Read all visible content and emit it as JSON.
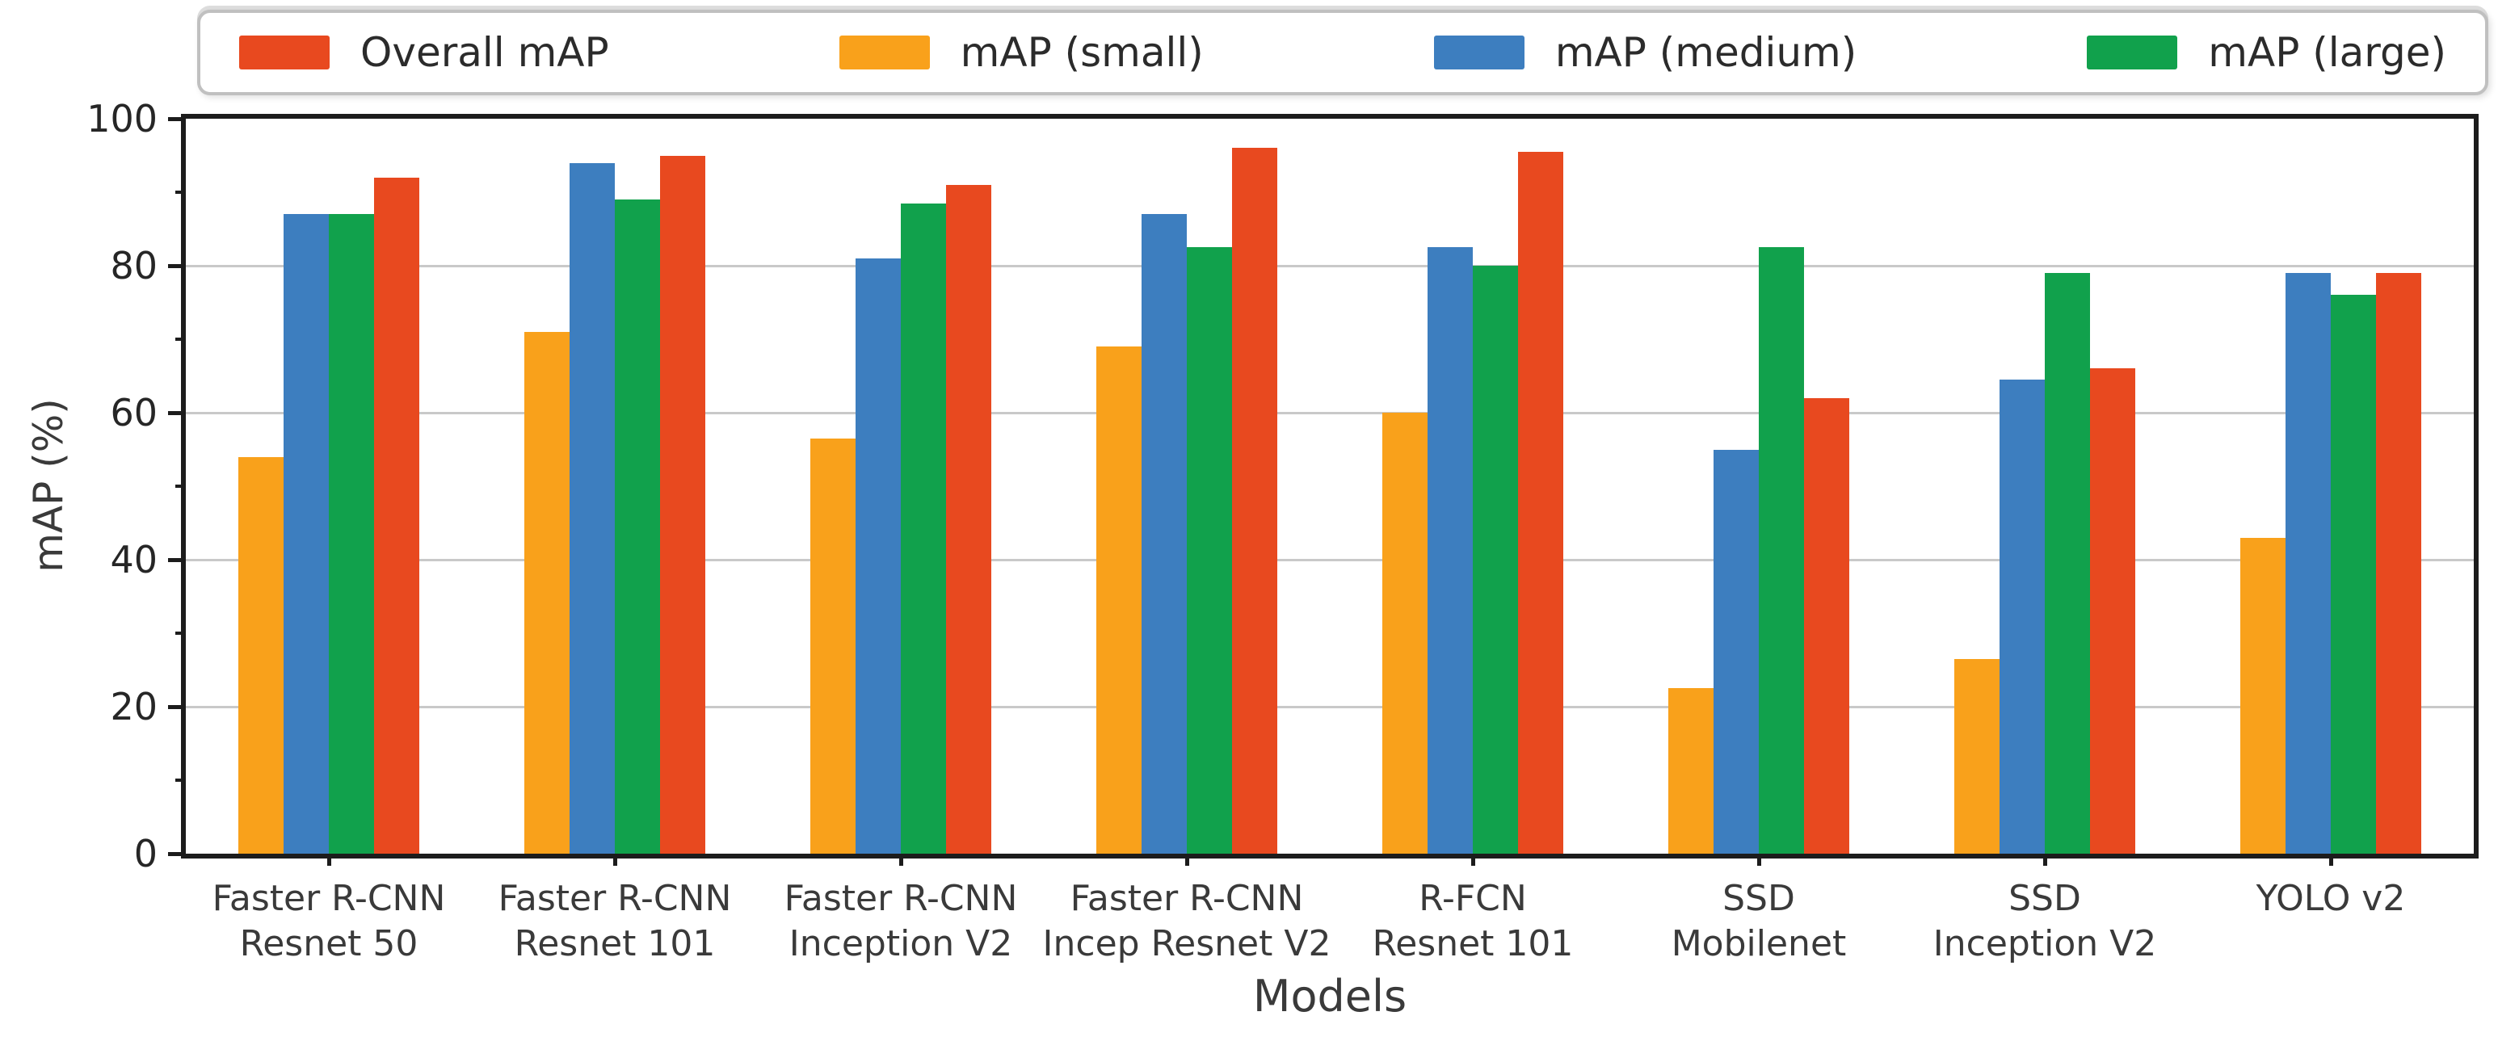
{
  "chart_data": {
    "type": "bar",
    "xlabel": "Models",
    "ylabel": "mAP (%)",
    "ylim": [
      0,
      100
    ],
    "yticks": [
      0,
      20,
      40,
      60,
      80,
      100
    ],
    "yticks_minor": [
      10,
      30,
      50,
      70,
      90
    ],
    "grid": "horizontal",
    "legend_position": "top",
    "categories": [
      [
        "Faster R-CNN",
        "Resnet 50"
      ],
      [
        "Faster R-CNN",
        "Resnet 101"
      ],
      [
        "Faster R-CNN",
        "Inception V2"
      ],
      [
        "Faster R-CNN",
        "Incep Resnet V2"
      ],
      [
        "R-FCN",
        "Resnet 101"
      ],
      [
        "SSD",
        "Mobilenet"
      ],
      [
        "SSD",
        "Inception V2"
      ],
      [
        "YOLO v2"
      ]
    ],
    "series": [
      {
        "name": "Overall mAP",
        "color": "#E8491F",
        "values": [
          92,
          95,
          91,
          96,
          95.5,
          62,
          66,
          79
        ]
      },
      {
        "name": "mAP (small)",
        "color": "#F9A11B",
        "values": [
          54,
          71,
          56.5,
          69,
          60,
          22.5,
          26.5,
          43
        ]
      },
      {
        "name": "mAP (medium)",
        "color": "#3D7EBF",
        "values": [
          87,
          94,
          81,
          87,
          82.5,
          55,
          64.5,
          79
        ]
      },
      {
        "name": "mAP (large)",
        "color": "#11A14C",
        "values": [
          87,
          89,
          88.5,
          82.5,
          80,
          82.5,
          79,
          76
        ]
      }
    ],
    "bar_order": [
      "mAP (small)",
      "mAP (medium)",
      "mAP (large)",
      "Overall mAP"
    ],
    "colors": {
      "grid": "#c9c9c9",
      "spine": "#1c1c1c",
      "tick_text": "#262626",
      "label_text": "#3a3a3a"
    }
  }
}
